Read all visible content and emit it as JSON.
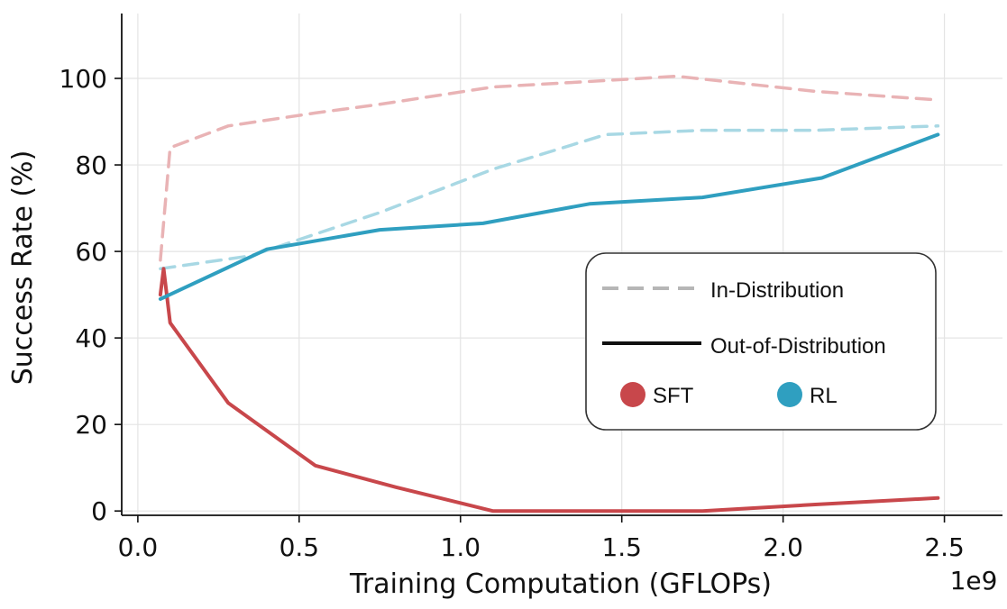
{
  "chart_data": {
    "type": "line",
    "xlabel": "Training Computation (GFLOPs)",
    "ylabel": "Success Rate (%)",
    "x_scale_label": "1e9",
    "xlim": [
      -50000000.0,
      2680000000.0
    ],
    "ylim": [
      -1,
      115
    ],
    "xticks": [
      0,
      500000000.0,
      1000000000.0,
      1500000000.0,
      2000000000.0,
      2500000000.0
    ],
    "xtick_labels": [
      "0.0",
      "0.5",
      "1.0",
      "1.5",
      "2.0",
      "2.5"
    ],
    "yticks": [
      0,
      20,
      40,
      60,
      80,
      100
    ],
    "ytick_labels": [
      "0",
      "20",
      "40",
      "60",
      "80",
      "100"
    ],
    "grid": true,
    "legend_position": "center-right",
    "series": [
      {
        "method": "SFT",
        "distribution": "In-Distribution",
        "style": "dashed",
        "color": "#e9b3b5",
        "x": [
          70000000.0,
          100000000.0,
          280000000.0,
          550000000.0,
          750000000.0,
          1100000000.0,
          1450000000.0,
          1670000000.0,
          2100000000.0,
          2480000000.0
        ],
        "y": [
          58,
          84,
          89,
          92,
          94,
          98,
          99.5,
          100.5,
          97,
          95
        ]
      },
      {
        "method": "RL",
        "distribution": "In-Distribution",
        "style": "dashed",
        "color": "#a8d8e4",
        "x": [
          70000000.0,
          350000000.0,
          750000000.0,
          1100000000.0,
          1450000000.0,
          1750000000.0,
          2100000000.0,
          2480000000.0
        ],
        "y": [
          56,
          59,
          69,
          79,
          87,
          88,
          88,
          89
        ]
      },
      {
        "method": "SFT",
        "distribution": "Out-of-Distribution",
        "style": "solid",
        "color": "#c8474b",
        "x": [
          70000000.0,
          80000000.0,
          100000000.0,
          280000000.0,
          550000000.0,
          800000000.0,
          1100000000.0,
          1400000000.0,
          1750000000.0,
          2100000000.0,
          2480000000.0
        ],
        "y": [
          50,
          56,
          43.5,
          25,
          10.5,
          5.5,
          0,
          0,
          0,
          1.5,
          3
        ]
      },
      {
        "method": "RL",
        "distribution": "Out-of-Distribution",
        "style": "solid",
        "color": "#2f9fc0",
        "x": [
          70000000.0,
          400000000.0,
          750000000.0,
          1070000000.0,
          1400000000.0,
          1750000000.0,
          2120000000.0,
          2480000000.0
        ],
        "y": [
          49,
          60.5,
          65,
          66.5,
          71,
          72.5,
          77,
          87
        ]
      }
    ],
    "legend": {
      "in_label": "In-Distribution",
      "out_label": "Out-of-Distribution",
      "in_sample_color": "#b6b6b6",
      "out_sample_color": "#111111",
      "sft_label": "SFT",
      "sft_color": "#c8474b",
      "rl_label": "RL",
      "rl_color": "#2f9fc0"
    }
  }
}
